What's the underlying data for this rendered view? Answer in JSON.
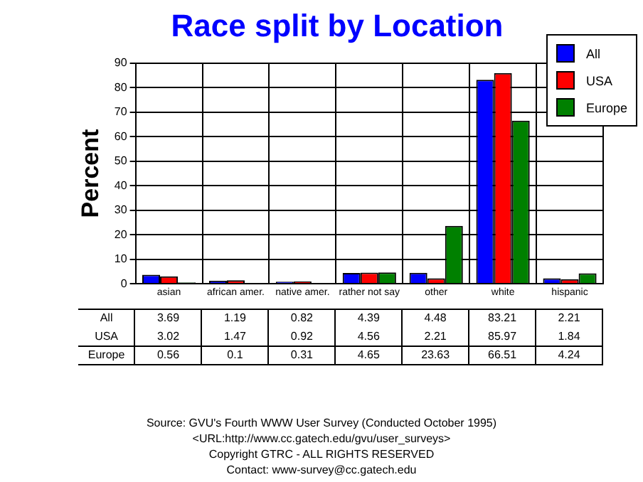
{
  "chart_data": {
    "type": "bar",
    "title": "Race split by Location",
    "ylabel": "Percent",
    "categories": [
      "asian",
      "african amer.",
      "native amer.",
      "rather not say",
      "other",
      "white",
      "hispanic"
    ],
    "series": [
      {
        "name": "All",
        "color": "#0000ff",
        "values": [
          3.69,
          1.19,
          0.82,
          4.39,
          4.48,
          83.21,
          2.21
        ]
      },
      {
        "name": "USA",
        "color": "#ff0000",
        "values": [
          3.02,
          1.47,
          0.92,
          4.56,
          2.21,
          85.97,
          1.84
        ]
      },
      {
        "name": "Europe",
        "color": "#008000",
        "values": [
          0.56,
          0.1,
          0.31,
          4.65,
          23.63,
          66.51,
          4.24
        ]
      }
    ],
    "ylim": [
      0,
      90
    ],
    "yticks": [
      0,
      10,
      20,
      30,
      40,
      50,
      60,
      70,
      80,
      90
    ],
    "grid": true,
    "legend": "top right",
    "data_labels": true,
    "annotations": [
      "Source: GVU's Fourth WWW User Survey (Conducted October 1995)",
      "<URL:http://www.cc.gatech.edu/gvu/user_surveys>",
      "Copyright GTRC - ALL RIGHTS RESERVED",
      "Contact: www-survey@cc.gatech.edu"
    ]
  }
}
